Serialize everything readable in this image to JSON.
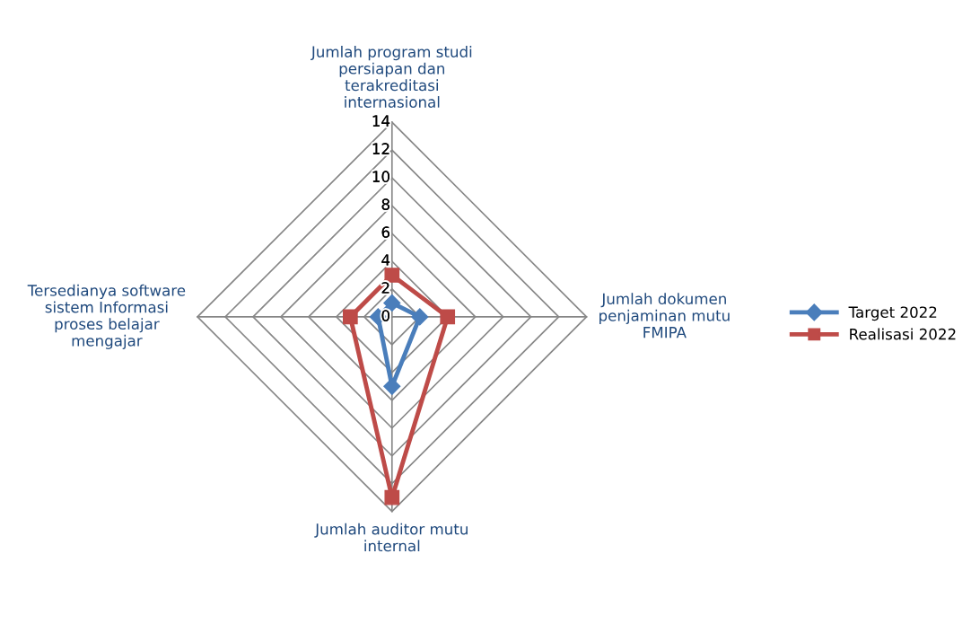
{
  "chart_data": {
    "type": "radar",
    "categories": [
      "Jumlah program studi\npersiapan dan\nterakreditasi\ninternasional",
      "Jumlah dokumen\npenjaminan mutu\nFMIPA",
      "Jumlah auditor mutu\ninternal",
      "Tersedianya software\nsistem Informasi\nproses belajar\nmengajar"
    ],
    "series": [
      {
        "name": "Target 2022",
        "color": "#4a7ebb",
        "marker": "diamond",
        "values": [
          1,
          2,
          5,
          1
        ]
      },
      {
        "name": "Realisasi 2022",
        "color": "#be4b48",
        "marker": "square",
        "values": [
          3,
          4,
          13,
          3
        ]
      }
    ],
    "ylim": [
      0,
      14
    ],
    "yticks": [
      0,
      2,
      4,
      6,
      8,
      10,
      12,
      14
    ],
    "grid": true,
    "legend": "right"
  }
}
